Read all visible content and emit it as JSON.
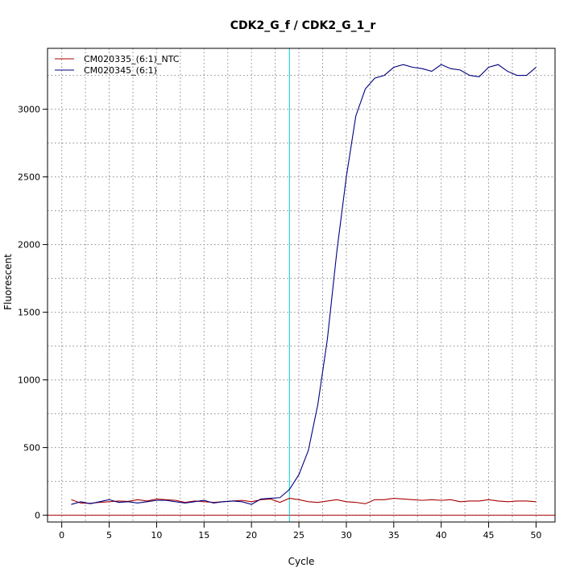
{
  "chart_data": {
    "type": "line",
    "title": "CDK2_G_f / CDK2_G_1_r",
    "xlabel": "Cycle",
    "ylabel": "Fluorescent",
    "xlim": [
      -1.5,
      52
    ],
    "ylim": [
      -50,
      3450
    ],
    "xticks": [
      0,
      5,
      10,
      15,
      20,
      25,
      30,
      35,
      40,
      45,
      50
    ],
    "yticks": [
      0,
      500,
      1000,
      1500,
      2000,
      2500,
      3000
    ],
    "grid": true,
    "vertical_gridlines": [
      2.5,
      7.5,
      12.5,
      17.5,
      22.5,
      27.5,
      32.5,
      37.5,
      42.5,
      47.5
    ],
    "horizontal_gridlines": [
      250,
      750,
      1250,
      1750,
      2250,
      2750,
      3250
    ],
    "threshold_cycle": 24,
    "baseline": 0,
    "legend_position": "top-left",
    "x": [
      1,
      2,
      3,
      4,
      5,
      6,
      7,
      8,
      9,
      10,
      11,
      12,
      13,
      14,
      15,
      16,
      17,
      18,
      19,
      20,
      21,
      22,
      23,
      24,
      25,
      26,
      27,
      28,
      29,
      30,
      31,
      32,
      33,
      34,
      35,
      36,
      37,
      38,
      39,
      40,
      41,
      42,
      43,
      44,
      45,
      46,
      47,
      48,
      49,
      50
    ],
    "series": [
      {
        "name": "CM020335_(6:1)_NTC",
        "color": "#aa0000",
        "values": [
          115,
          90,
          88,
          95,
          100,
          105,
          102,
          115,
          105,
          120,
          115,
          110,
          95,
          105,
          100,
          95,
          100,
          105,
          110,
          100,
          115,
          120,
          95,
          125,
          115,
          100,
          95,
          105,
          115,
          100,
          95,
          85,
          115,
          115,
          125,
          120,
          115,
          110,
          115,
          110,
          115,
          100,
          105,
          105,
          115,
          105,
          100,
          105,
          105,
          100
        ]
      },
      {
        "name": "CM020345_(6:1)",
        "color": "#000080",
        "values": [
          80,
          100,
          85,
          100,
          115,
          95,
          100,
          90,
          100,
          110,
          110,
          100,
          90,
          100,
          110,
          90,
          100,
          105,
          100,
          80,
          120,
          125,
          130,
          190,
          300,
          480,
          820,
          1300,
          1950,
          2500,
          2950,
          3150,
          3230,
          3250,
          3310,
          3330,
          3310,
          3300,
          3280,
          3330,
          3300,
          3290,
          3250,
          3240,
          3310,
          3330,
          3280,
          3250,
          3250,
          3310
        ]
      }
    ]
  }
}
